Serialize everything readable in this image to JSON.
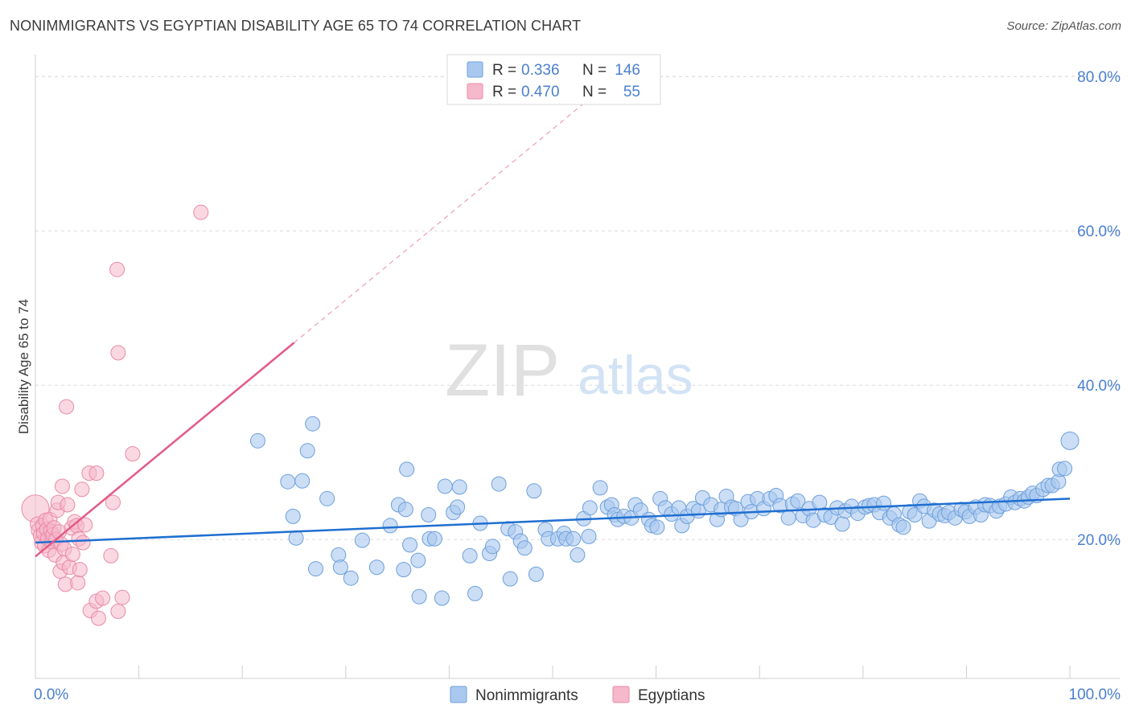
{
  "title": "NONIMMIGRANTS VS EGYPTIAN DISABILITY AGE 65 TO 74 CORRELATION CHART",
  "source": "Source: ZipAtlas.com",
  "watermark": {
    "zip": "ZIP",
    "atlas": "atlas"
  },
  "colors": {
    "blue_fill": "#a9c8ef",
    "blue_stroke": "#6e9fdc",
    "blue_line": "#1f6fd1",
    "pink_fill": "#f6b8cb",
    "pink_stroke": "#e98aa8",
    "pink_line": "#e35a86",
    "tick_label": "#4a7fcf",
    "grid": "#dcdcdc"
  },
  "legend_top": {
    "rows": [
      {
        "r_label": "R =",
        "r_value": "0.336",
        "n_label": "N =",
        "n_value": "146"
      },
      {
        "r_label": "R =",
        "r_value": "0.470",
        "n_label": "N =",
        "n_value": "55"
      }
    ]
  },
  "legend_bottom": [
    "Nonimmigrants",
    "Egyptians"
  ],
  "chart_data": {
    "type": "scatter",
    "title": "NONIMMIGRANTS VS EGYPTIAN DISABILITY AGE 65 TO 74 CORRELATION CHART",
    "xlabel": "",
    "ylabel": "Disability Age 65 to 74",
    "xlim": [
      0,
      100
    ],
    "ylim": [
      2,
      82
    ],
    "x_tick_labels": [
      "0.0%",
      "100.0%"
    ],
    "y_ticks": [
      20,
      40,
      60,
      80
    ],
    "y_tick_labels": [
      "20.0%",
      "40.0%",
      "60.0%",
      "80.0%"
    ],
    "grid": true,
    "legend_position": "bottom",
    "series": [
      {
        "name": "Nonimmigrants",
        "stats": {
          "R": 0.336,
          "N": 146
        },
        "trend": {
          "x": [
            0,
            100
          ],
          "y": [
            19.6,
            25.3
          ]
        },
        "points": [
          [
            21.5,
            32.8
          ],
          [
            26.8,
            35.0
          ],
          [
            26.3,
            31.5
          ],
          [
            24.4,
            27.5
          ],
          [
            25.8,
            27.6
          ],
          [
            24.9,
            23.0
          ],
          [
            25.2,
            20.2
          ],
          [
            28.2,
            25.3
          ],
          [
            27.1,
            16.2
          ],
          [
            29.3,
            18.0
          ],
          [
            29.5,
            16.4
          ],
          [
            30.5,
            15.0
          ],
          [
            31.6,
            19.9
          ],
          [
            33.0,
            16.4
          ],
          [
            34.3,
            21.8
          ],
          [
            35.1,
            24.5
          ],
          [
            35.6,
            16.1
          ],
          [
            35.8,
            23.9
          ],
          [
            36.2,
            19.3
          ],
          [
            37.0,
            17.3
          ],
          [
            37.1,
            12.6
          ],
          [
            35.9,
            29.1
          ],
          [
            38.0,
            23.2
          ],
          [
            38.1,
            20.1
          ],
          [
            38.6,
            20.1
          ],
          [
            39.3,
            12.4
          ],
          [
            39.6,
            26.9
          ],
          [
            40.4,
            23.5
          ],
          [
            40.8,
            24.2
          ],
          [
            41.0,
            26.8
          ],
          [
            42.0,
            17.9
          ],
          [
            42.5,
            13.0
          ],
          [
            43.0,
            22.1
          ],
          [
            43.9,
            18.2
          ],
          [
            44.2,
            19.1
          ],
          [
            44.8,
            27.2
          ],
          [
            45.7,
            21.4
          ],
          [
            45.9,
            14.9
          ],
          [
            46.4,
            21.0
          ],
          [
            46.9,
            19.8
          ],
          [
            47.3,
            18.9
          ],
          [
            48.2,
            26.3
          ],
          [
            48.4,
            15.5
          ],
          [
            49.3,
            21.3
          ],
          [
            49.6,
            20.1
          ],
          [
            50.5,
            20.1
          ],
          [
            51.1,
            20.8
          ],
          [
            51.3,
            20.1
          ],
          [
            52.0,
            20.1
          ],
          [
            52.4,
            18.0
          ],
          [
            53.0,
            22.7
          ],
          [
            53.5,
            20.4
          ],
          [
            53.6,
            24.1
          ],
          [
            54.6,
            26.7
          ],
          [
            55.3,
            24.2
          ],
          [
            55.7,
            24.5
          ],
          [
            56.0,
            23.2
          ],
          [
            56.3,
            22.6
          ],
          [
            56.9,
            23.0
          ],
          [
            57.6,
            22.8
          ],
          [
            58.0,
            24.5
          ],
          [
            58.5,
            23.8
          ],
          [
            59.3,
            22.6
          ],
          [
            59.6,
            21.8
          ],
          [
            60.1,
            21.6
          ],
          [
            60.4,
            25.3
          ],
          [
            60.9,
            24.1
          ],
          [
            61.5,
            23.3
          ],
          [
            62.2,
            24.1
          ],
          [
            62.5,
            21.8
          ],
          [
            63.0,
            23.0
          ],
          [
            63.6,
            24.0
          ],
          [
            64.1,
            23.7
          ],
          [
            64.5,
            25.4
          ],
          [
            65.3,
            24.5
          ],
          [
            65.9,
            22.6
          ],
          [
            66.3,
            23.9
          ],
          [
            66.8,
            25.6
          ],
          [
            67.3,
            24.2
          ],
          [
            67.7,
            24.0
          ],
          [
            68.2,
            22.6
          ],
          [
            68.9,
            24.9
          ],
          [
            69.2,
            23.6
          ],
          [
            69.8,
            25.3
          ],
          [
            70.4,
            24.0
          ],
          [
            71.0,
            25.3
          ],
          [
            71.6,
            25.7
          ],
          [
            72.0,
            24.4
          ],
          [
            72.8,
            22.8
          ],
          [
            73.2,
            24.6
          ],
          [
            73.7,
            25.0
          ],
          [
            74.2,
            23.1
          ],
          [
            74.8,
            24.0
          ],
          [
            75.2,
            22.5
          ],
          [
            75.8,
            24.8
          ],
          [
            76.3,
            23.2
          ],
          [
            76.9,
            22.9
          ],
          [
            77.5,
            24.1
          ],
          [
            78.0,
            22.0
          ],
          [
            78.3,
            23.7
          ],
          [
            78.9,
            24.3
          ],
          [
            79.5,
            23.4
          ],
          [
            80.2,
            24.2
          ],
          [
            80.6,
            24.4
          ],
          [
            81.1,
            24.5
          ],
          [
            81.6,
            23.5
          ],
          [
            82.0,
            24.7
          ],
          [
            82.6,
            22.8
          ],
          [
            83.0,
            23.3
          ],
          [
            83.5,
            21.9
          ],
          [
            83.9,
            21.6
          ],
          [
            84.5,
            23.6
          ],
          [
            85.0,
            23.2
          ],
          [
            85.5,
            25.0
          ],
          [
            85.9,
            24.3
          ],
          [
            86.4,
            22.4
          ],
          [
            86.9,
            23.8
          ],
          [
            87.4,
            23.3
          ],
          [
            87.9,
            23.1
          ],
          [
            88.3,
            23.5
          ],
          [
            88.9,
            22.8
          ],
          [
            89.5,
            23.9
          ],
          [
            89.9,
            23.6
          ],
          [
            90.3,
            23.0
          ],
          [
            90.9,
            24.2
          ],
          [
            91.4,
            23.2
          ],
          [
            91.8,
            24.5
          ],
          [
            92.3,
            24.4
          ],
          [
            92.9,
            23.7
          ],
          [
            93.2,
            24.3
          ],
          [
            93.8,
            24.6
          ],
          [
            94.3,
            25.5
          ],
          [
            94.7,
            24.8
          ],
          [
            95.2,
            25.3
          ],
          [
            95.6,
            25.0
          ],
          [
            96.0,
            25.5
          ],
          [
            96.4,
            26.0
          ],
          [
            96.8,
            25.7
          ],
          [
            97.4,
            26.5
          ],
          [
            97.9,
            27.0
          ],
          [
            98.3,
            27.0
          ],
          [
            98.9,
            27.5
          ],
          [
            99.0,
            29.1
          ],
          [
            99.5,
            29.2
          ],
          [
            100.0,
            32.8
          ]
        ]
      },
      {
        "name": "Egyptians",
        "stats": {
          "R": 0.47,
          "N": 55
        },
        "trend": {
          "x": [
            0,
            25
          ],
          "y": [
            17.8,
            45.5
          ]
        },
        "trend_extension": {
          "x": [
            25,
            53
          ],
          "y": [
            45.5,
            76.5
          ]
        },
        "points": [
          [
            0.0,
            24.0
          ],
          [
            0.2,
            22.0
          ],
          [
            0.3,
            21.2
          ],
          [
            0.5,
            20.5
          ],
          [
            0.6,
            19.6
          ],
          [
            0.7,
            21.8
          ],
          [
            0.8,
            20.8
          ],
          [
            0.9,
            19.2
          ],
          [
            1.0,
            22.5
          ],
          [
            1.1,
            21.3
          ],
          [
            1.2,
            20.1
          ],
          [
            1.3,
            18.6
          ],
          [
            1.4,
            22.6
          ],
          [
            1.5,
            21.1
          ],
          [
            1.6,
            19.7
          ],
          [
            1.7,
            20.6
          ],
          [
            1.8,
            21.5
          ],
          [
            1.9,
            18.0
          ],
          [
            2.0,
            20.0
          ],
          [
            2.1,
            23.8
          ],
          [
            2.2,
            24.8
          ],
          [
            2.3,
            21.0
          ],
          [
            2.4,
            15.9
          ],
          [
            2.5,
            19.4
          ],
          [
            2.6,
            26.9
          ],
          [
            2.7,
            17.0
          ],
          [
            2.8,
            18.8
          ],
          [
            2.9,
            14.2
          ],
          [
            3.0,
            37.2
          ],
          [
            3.1,
            24.5
          ],
          [
            3.3,
            16.4
          ],
          [
            3.5,
            21.5
          ],
          [
            3.6,
            18.1
          ],
          [
            3.8,
            22.3
          ],
          [
            4.0,
            21.8
          ],
          [
            4.1,
            14.4
          ],
          [
            4.2,
            20.1
          ],
          [
            4.3,
            16.1
          ],
          [
            4.5,
            26.5
          ],
          [
            4.6,
            19.6
          ],
          [
            4.8,
            21.9
          ],
          [
            5.3,
            10.8
          ],
          [
            5.2,
            28.6
          ],
          [
            5.9,
            28.6
          ],
          [
            5.9,
            12.0
          ],
          [
            6.1,
            9.8
          ],
          [
            6.5,
            12.4
          ],
          [
            7.3,
            17.9
          ],
          [
            7.5,
            24.8
          ],
          [
            7.9,
            55.0
          ],
          [
            8.0,
            44.2
          ],
          [
            8.0,
            10.7
          ],
          [
            8.4,
            12.5
          ],
          [
            9.4,
            31.1
          ],
          [
            16.0,
            62.4
          ]
        ]
      }
    ]
  }
}
